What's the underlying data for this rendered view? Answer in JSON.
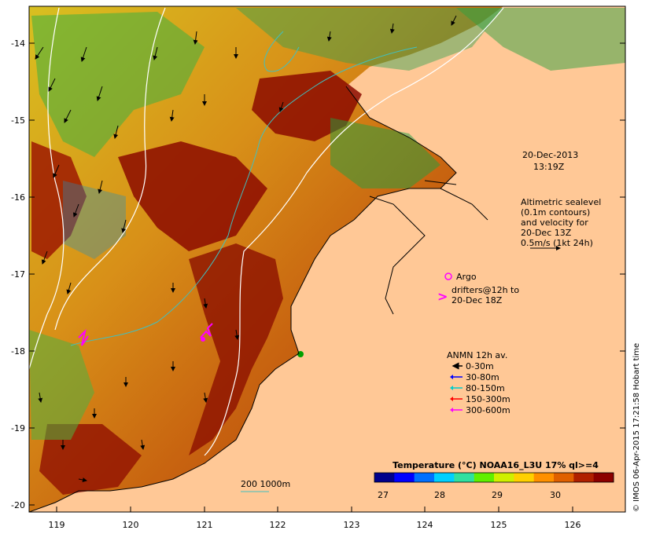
{
  "map": {
    "lon_ticks": [
      "119",
      "120",
      "121",
      "122",
      "123",
      "124",
      "125",
      "126"
    ],
    "lat_ticks": [
      "-14",
      "-15",
      "-16",
      "-17",
      "-18",
      "-19",
      "-20"
    ],
    "lon_range": [
      118.65,
      126.7
    ],
    "lat_range": [
      -20.1,
      -13.55
    ],
    "land_color": "#ffc896"
  },
  "annotations": {
    "date": "20-Dec-2013",
    "time": "13:19Z",
    "altimetry_line1": "Altimetric sealevel",
    "altimetry_line2": "(0.1m contours)",
    "altimetry_line3": "and velocity for",
    "altimetry_line4": "20-Dec 13Z",
    "altimetry_line5": "0.5m/s (1kt 24h)",
    "argo_label": "Argo",
    "drifters_line1": "drifters@12h to",
    "drifters_line2": "20-Dec 18Z",
    "drifter_symbol": ">",
    "scale_label": "200  1000m"
  },
  "anmn": {
    "title": "ANMN 12h av.",
    "items": [
      {
        "label": "0-30m",
        "color": "#000000"
      },
      {
        "label": "30-80m",
        "color": "#0000ff"
      },
      {
        "label": "80-150m",
        "color": "#00cccc"
      },
      {
        "label": "150-300m",
        "color": "#ff0000"
      },
      {
        "label": "300-600m",
        "color": "#ff00ff"
      }
    ]
  },
  "colorbar": {
    "title": "Temperature (°C) NOAA16_L3U 17% ql>=4",
    "ticks": [
      "27",
      "28",
      "29",
      "30"
    ],
    "colors": [
      "#00008c",
      "#0000ff",
      "#0070ff",
      "#00d0ff",
      "#30e0a0",
      "#60f000",
      "#d0f000",
      "#ffd000",
      "#ff9000",
      "#e06000",
      "#b02000",
      "#8c0000"
    ]
  },
  "credit": "© IMOS 06-Apr-2015 17:21:58 Hobart time"
}
